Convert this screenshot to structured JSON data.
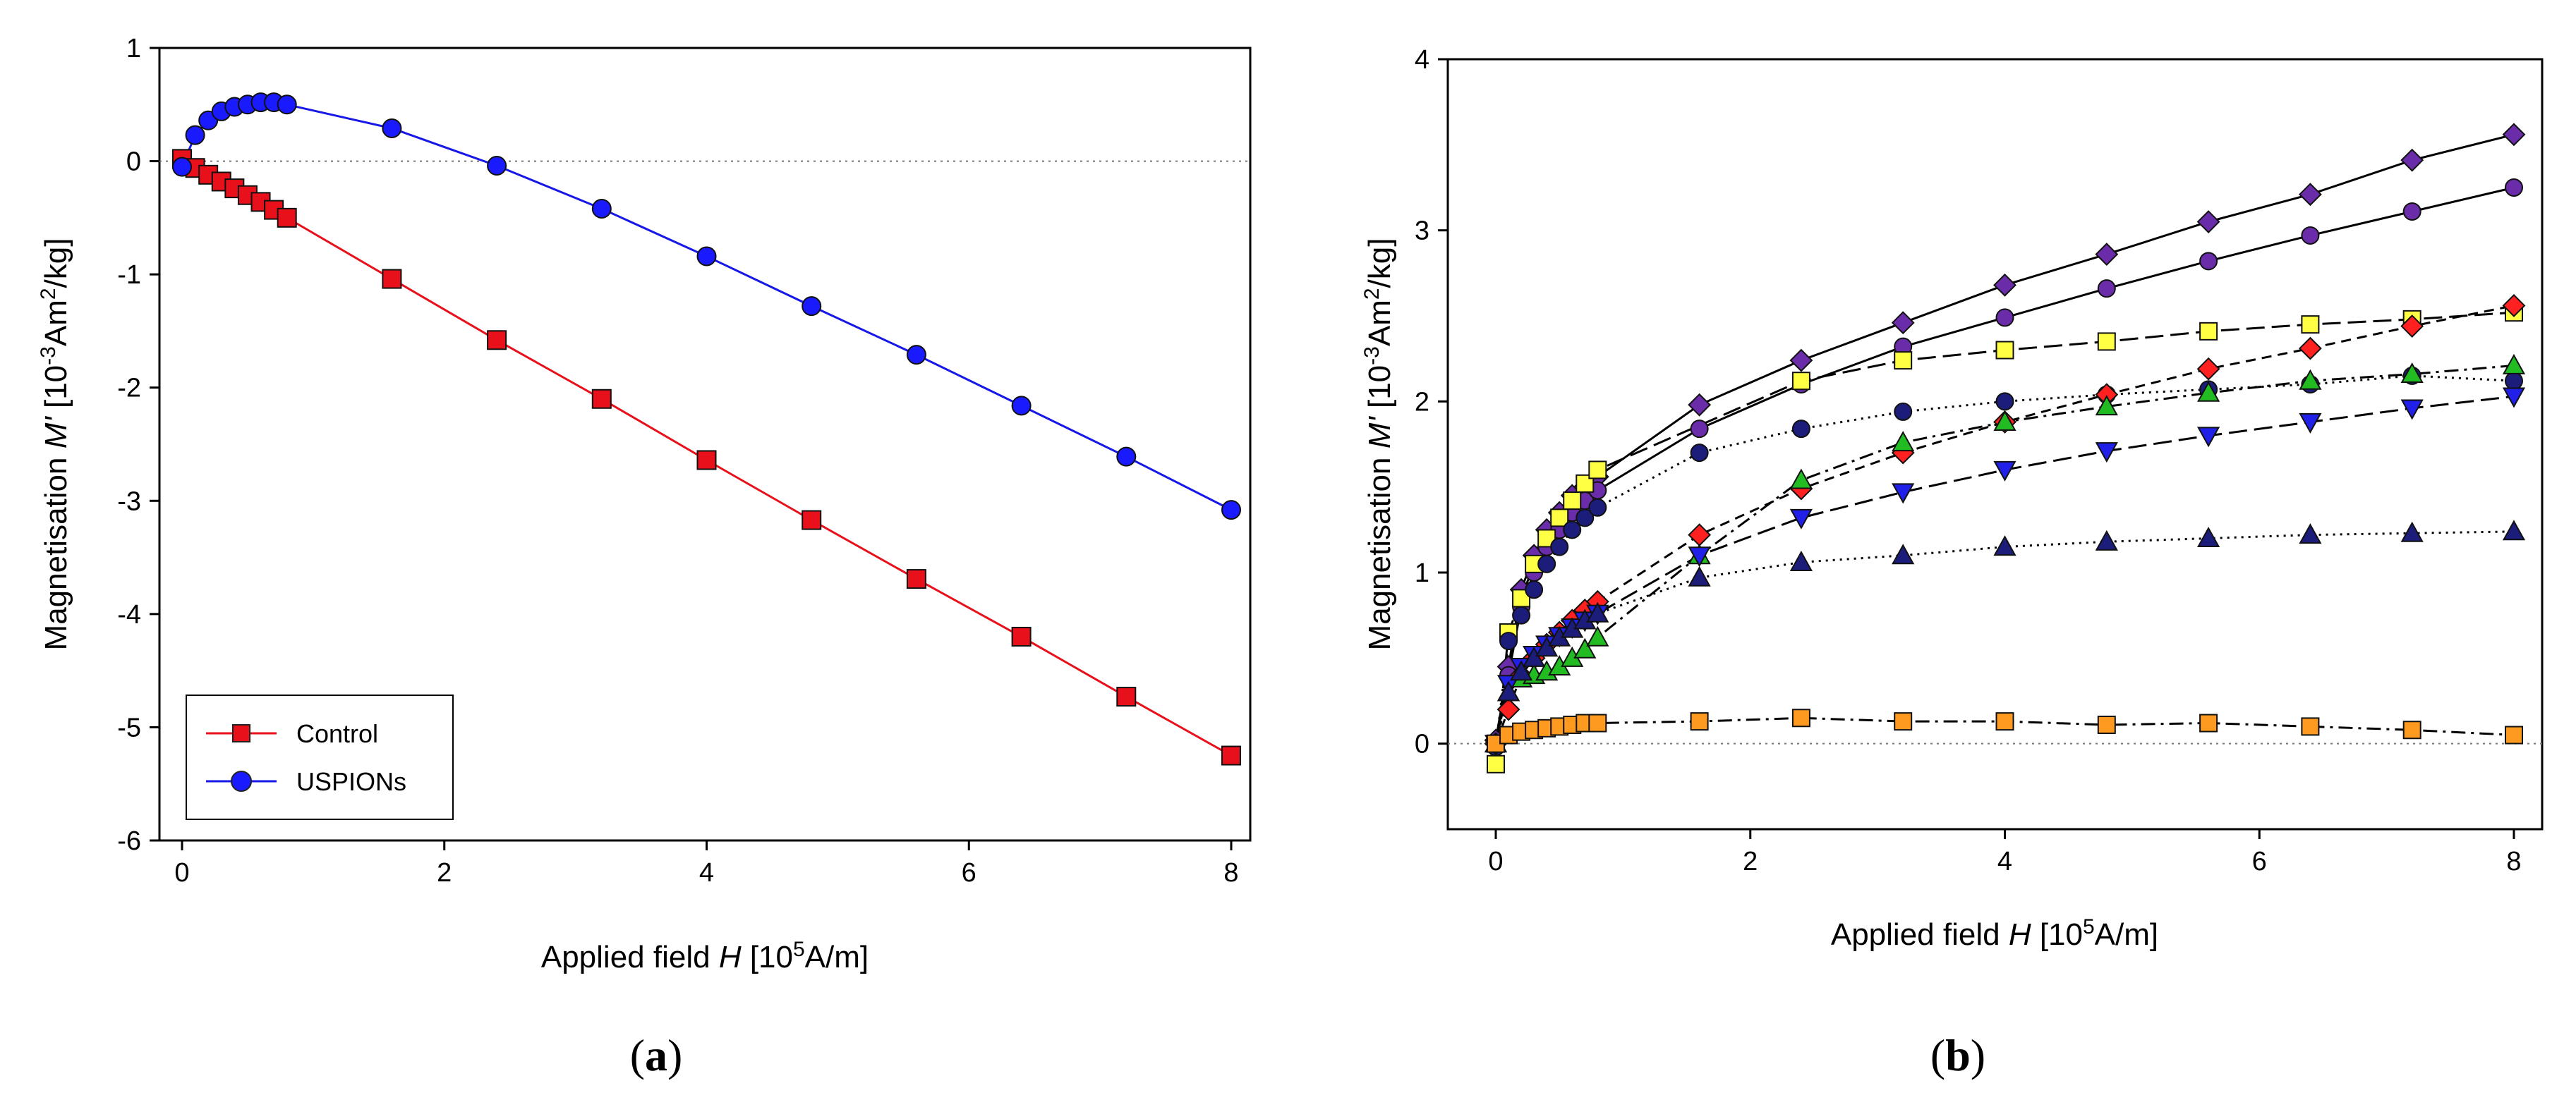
{
  "chart_data": [
    {
      "type": "line",
      "panel_label": "a",
      "xlabel": {
        "pre": "Applied field ",
        "var": "H",
        "unit_pre": " [10",
        "unit_sup": "5",
        "unit_post": "A/m]"
      },
      "ylabel": {
        "pre": "Magnetisation ",
        "var": "M'",
        "unit_pre": " [10",
        "unit_sup": "-3",
        "unit_mid": "Am",
        "unit_sup2": "2",
        "unit_post": "/kg]"
      },
      "xlim": [
        0,
        8
      ],
      "ylim": [
        -6,
        1
      ],
      "xticks": [
        "0",
        "2",
        "4",
        "6",
        "8"
      ],
      "yticks": [
        "1",
        "0",
        "-1",
        "-2",
        "-3",
        "-4",
        "-5",
        "-6"
      ],
      "zero_line": true,
      "legend_position": "bottom-left",
      "series": [
        {
          "name": "Control",
          "color": "#e8101a",
          "marker": "square",
          "marker_fill": "#e8101a",
          "x": [
            0,
            0.1,
            0.2,
            0.3,
            0.4,
            0.5,
            0.6,
            0.7,
            0.8,
            1.6,
            2.4,
            3.2,
            4.0,
            4.8,
            5.6,
            6.4,
            7.2,
            8.0
          ],
          "y": [
            0.02,
            -0.06,
            -0.12,
            -0.18,
            -0.24,
            -0.3,
            -0.36,
            -0.43,
            -0.5,
            -1.04,
            -1.58,
            -2.1,
            -2.64,
            -3.17,
            -3.69,
            -4.2,
            -4.73,
            -5.25
          ]
        },
        {
          "name": "USPIONs",
          "color": "#1717e8",
          "marker": "circle",
          "marker_fill": "#1a1aff",
          "x": [
            0,
            0.1,
            0.2,
            0.3,
            0.4,
            0.5,
            0.6,
            0.7,
            0.8,
            1.6,
            2.4,
            3.2,
            4.0,
            4.8,
            5.6,
            6.4,
            7.2,
            8.0
          ],
          "y": [
            -0.05,
            0.23,
            0.36,
            0.44,
            0.48,
            0.5,
            0.52,
            0.52,
            0.5,
            0.29,
            -0.04,
            -0.42,
            -0.84,
            -1.28,
            -1.71,
            -2.16,
            -2.61,
            -3.08
          ]
        }
      ]
    },
    {
      "type": "line",
      "panel_label": "b",
      "xlabel": {
        "pre": "Applied field ",
        "var": "H",
        "unit_pre": " [10",
        "unit_sup": "5",
        "unit_post": "A/m]"
      },
      "ylabel": {
        "pre": "Magnetisation ",
        "var": "M'",
        "unit_pre": " [10",
        "unit_sup": "-3",
        "unit_mid": "Am",
        "unit_sup2": "2",
        "unit_post": "/kg]"
      },
      "xlim": [
        0,
        8
      ],
      "ylim": [
        -0.5,
        4
      ],
      "xticks": [
        "0",
        "2",
        "4",
        "6",
        "8"
      ],
      "yticks": [
        "4",
        "3",
        "2",
        "1",
        "0"
      ],
      "zero_line": true,
      "series": [
        {
          "name": "diamond-purple",
          "color": "#000000",
          "dash": "solid",
          "marker": "diamond",
          "marker_fill": "#6a2ca8",
          "x": [
            0,
            0.1,
            0.2,
            0.3,
            0.4,
            0.5,
            0.6,
            0.7,
            0.8,
            1.6,
            2.4,
            3.2,
            4.0,
            4.8,
            5.6,
            6.4,
            7.2,
            8.0
          ],
          "y": [
            0.02,
            0.45,
            0.9,
            1.1,
            1.25,
            1.35,
            1.45,
            1.5,
            1.56,
            1.98,
            2.24,
            2.46,
            2.68,
            2.86,
            3.05,
            3.21,
            3.41,
            3.56
          ]
        },
        {
          "name": "circle-purple",
          "color": "#000000",
          "dash": "solid",
          "marker": "circle",
          "marker_fill": "#6a2ca8",
          "x": [
            0,
            0.1,
            0.2,
            0.3,
            0.4,
            0.5,
            0.6,
            0.7,
            0.8,
            1.6,
            2.4,
            3.2,
            4.0,
            4.8,
            5.6,
            6.4,
            7.2,
            8.0
          ],
          "y": [
            0.0,
            0.4,
            0.8,
            1.0,
            1.15,
            1.25,
            1.35,
            1.42,
            1.48,
            1.84,
            2.1,
            2.32,
            2.49,
            2.66,
            2.82,
            2.97,
            3.11,
            3.25
          ]
        },
        {
          "name": "square-yellow",
          "color": "#000000",
          "dash": "longdash",
          "marker": "square",
          "marker_fill": "#ffff44",
          "x": [
            0,
            0.1,
            0.2,
            0.3,
            0.4,
            0.5,
            0.6,
            0.7,
            0.8,
            2.4,
            3.2,
            4.0,
            4.8,
            5.6,
            6.4,
            7.2,
            8.0
          ],
          "y": [
            -0.12,
            0.65,
            0.85,
            1.05,
            1.2,
            1.32,
            1.42,
            1.52,
            1.6,
            2.12,
            2.24,
            2.3,
            2.35,
            2.41,
            2.45,
            2.48,
            2.52
          ]
        },
        {
          "name": "circle-navy",
          "color": "#000000",
          "dash": "dotted",
          "marker": "circle",
          "marker_fill": "#1c1c7a",
          "x": [
            0,
            0.1,
            0.2,
            0.3,
            0.4,
            0.5,
            0.6,
            0.7,
            0.8,
            1.6,
            2.4,
            3.2,
            4.0,
            4.8,
            5.6,
            6.4,
            7.2,
            8.0
          ],
          "y": [
            -0.02,
            0.6,
            0.75,
            0.9,
            1.05,
            1.15,
            1.25,
            1.32,
            1.38,
            1.7,
            1.84,
            1.94,
            2.0,
            2.04,
            2.07,
            2.1,
            2.15,
            2.12
          ]
        },
        {
          "name": "diamond-red",
          "color": "#000000",
          "dash": "dashed",
          "marker": "diamond",
          "marker_fill": "#ff2020",
          "x": [
            0,
            0.1,
            0.2,
            0.3,
            0.4,
            0.5,
            0.6,
            0.7,
            0.8,
            1.6,
            2.4,
            3.2,
            4.0,
            4.8,
            5.6,
            6.4,
            7.2,
            8.0
          ],
          "y": [
            0.0,
            0.2,
            0.4,
            0.5,
            0.58,
            0.65,
            0.72,
            0.78,
            0.83,
            1.22,
            1.49,
            1.7,
            1.88,
            2.04,
            2.19,
            2.31,
            2.44,
            2.56
          ]
        },
        {
          "name": "triangle-green",
          "color": "#000000",
          "dash": "dashdot",
          "marker": "triangle-up",
          "marker_fill": "#22bb22",
          "x": [
            0,
            0.1,
            0.2,
            0.3,
            0.4,
            0.5,
            0.6,
            0.7,
            0.8,
            1.6,
            2.4,
            3.2,
            4.0,
            4.8,
            5.6,
            6.4,
            7.2,
            8.0
          ],
          "y": [
            0.0,
            0.3,
            0.38,
            0.4,
            0.42,
            0.45,
            0.5,
            0.55,
            0.62,
            1.1,
            1.54,
            1.76,
            1.88,
            1.97,
            2.05,
            2.12,
            2.16,
            2.21
          ]
        },
        {
          "name": "triangle-down-blue",
          "color": "#000000",
          "dash": "longdash",
          "marker": "triangle-down",
          "marker_fill": "#2020e8",
          "x": [
            0,
            0.1,
            0.2,
            0.3,
            0.4,
            0.5,
            0.6,
            0.7,
            0.8,
            1.6,
            2.4,
            3.2,
            4.0,
            4.8,
            5.6,
            6.4,
            7.2,
            8.0
          ],
          "y": [
            0.0,
            0.35,
            0.45,
            0.52,
            0.58,
            0.63,
            0.68,
            0.72,
            0.76,
            1.1,
            1.32,
            1.47,
            1.6,
            1.71,
            1.8,
            1.88,
            1.96,
            2.03
          ]
        },
        {
          "name": "triangle-navy",
          "color": "#000000",
          "dash": "dotted",
          "marker": "triangle-up",
          "marker_fill": "#1c1c7a",
          "x": [
            0,
            0.1,
            0.2,
            0.3,
            0.4,
            0.5,
            0.6,
            0.7,
            0.8,
            1.6,
            2.4,
            3.2,
            4.0,
            4.8,
            5.6,
            6.4,
            7.2,
            8.0
          ],
          "y": [
            0.0,
            0.3,
            0.42,
            0.5,
            0.56,
            0.62,
            0.67,
            0.72,
            0.76,
            0.97,
            1.06,
            1.1,
            1.15,
            1.18,
            1.2,
            1.22,
            1.23,
            1.24
          ]
        },
        {
          "name": "square-orange",
          "color": "#000000",
          "dash": "dashdot",
          "marker": "square",
          "marker_fill": "#ff9a20",
          "x": [
            0,
            0.1,
            0.2,
            0.3,
            0.4,
            0.5,
            0.6,
            0.7,
            0.8,
            1.6,
            2.4,
            3.2,
            4.0,
            4.8,
            5.6,
            6.4,
            7.2,
            8.0
          ],
          "y": [
            0.0,
            0.05,
            0.07,
            0.08,
            0.09,
            0.1,
            0.11,
            0.12,
            0.12,
            0.13,
            0.15,
            0.13,
            0.13,
            0.11,
            0.12,
            0.1,
            0.08,
            0.05
          ]
        }
      ]
    }
  ]
}
